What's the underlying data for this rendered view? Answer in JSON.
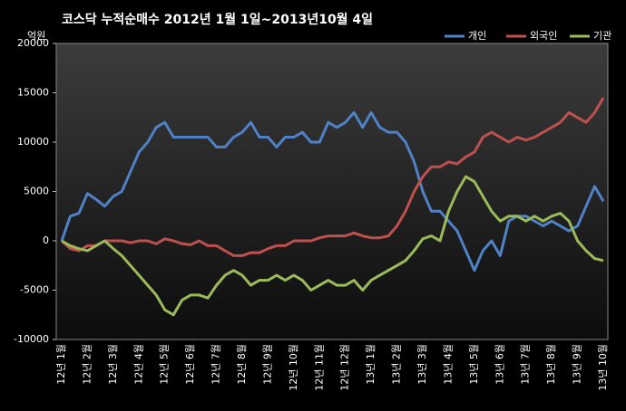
{
  "chart_data": {
    "type": "line",
    "title": "코스닥 누적순매수 2012년 1월 1일~2013년10월 4일",
    "y_label": "억원",
    "categories": [
      "12년 1월",
      null,
      null,
      "12년 2월",
      null,
      null,
      "12년 3월",
      null,
      null,
      "12년 4월",
      null,
      null,
      "12년 5월",
      null,
      null,
      "12년 6월",
      null,
      null,
      "12년 7월",
      null,
      null,
      "12년 8월",
      null,
      null,
      "12년 9월",
      null,
      null,
      "12년 10월",
      null,
      null,
      "12년 11월",
      null,
      null,
      "12년 12월",
      null,
      null,
      "13년 1월",
      null,
      null,
      "13년 2월",
      null,
      null,
      "13년 3월",
      null,
      null,
      "13년 4월",
      null,
      null,
      "13년 5월",
      null,
      null,
      "13년 6월",
      null,
      null,
      "13년 7월",
      null,
      null,
      "13년 8월",
      null,
      null,
      "13년 9월",
      null,
      null,
      "13년 10월"
    ],
    "series": [
      {
        "name": "개인",
        "color": "#4f81c7",
        "values": [
          0,
          2500,
          2800,
          4800,
          4200,
          3500,
          4500,
          5000,
          7000,
          9000,
          10000,
          11500,
          12000,
          10500,
          10500,
          10500,
          10500,
          10500,
          9500,
          9500,
          10500,
          11000,
          12000,
          10500,
          10500,
          9500,
          10500,
          10500,
          11000,
          10000,
          10000,
          12000,
          11500,
          12000,
          13000,
          11500,
          13000,
          11500,
          11000,
          11000,
          10000,
          8000,
          5000,
          3000,
          3000,
          2000,
          1000,
          -1000,
          -3000,
          -1000,
          0,
          -1500,
          2000,
          2500,
          2500,
          2000,
          1500,
          2000,
          1500,
          1000,
          1500,
          3500,
          5500,
          4000
        ]
      },
      {
        "name": "외국인",
        "color": "#c0504d",
        "values": [
          0,
          -800,
          -1000,
          -500,
          -500,
          0,
          0,
          0,
          -200,
          0,
          0,
          -300,
          200,
          0,
          -300,
          -400,
          0,
          -500,
          -500,
          -1000,
          -1500,
          -1500,
          -1200,
          -1200,
          -800,
          -500,
          -500,
          0,
          0,
          0,
          300,
          500,
          500,
          500,
          800,
          500,
          300,
          300,
          500,
          1500,
          3000,
          5000,
          6500,
          7500,
          7500,
          8000,
          7800,
          8500,
          9000,
          10500,
          11000,
          10500,
          10000,
          10500,
          10200,
          10500,
          11000,
          11500,
          12000,
          13000,
          12500,
          12000,
          13000,
          14500
        ]
      },
      {
        "name": "기관",
        "color": "#9bbb59",
        "values": [
          0,
          -500,
          -800,
          -1000,
          -500,
          0,
          -800,
          -1500,
          -2500,
          -3500,
          -4500,
          -5500,
          -7000,
          -7500,
          -6000,
          -5500,
          -5500,
          -5800,
          -4500,
          -3500,
          -3000,
          -3500,
          -4500,
          -4000,
          -4000,
          -3500,
          -4000,
          -3500,
          -4000,
          -5000,
          -4500,
          -4000,
          -4500,
          -4500,
          -4000,
          -5000,
          -4000,
          -3500,
          -3000,
          -2500,
          -2000,
          -1000,
          200,
          500,
          0,
          3000,
          5000,
          6500,
          6000,
          4500,
          3000,
          2000,
          2500,
          2500,
          2000,
          2500,
          2000,
          2500,
          2800,
          2000,
          0,
          -1000,
          -1800,
          -2000
        ]
      }
    ],
    "ylim": [
      -10000,
      20000
    ],
    "yticks": [
      -10000,
      -5000,
      0,
      5000,
      10000,
      15000,
      20000
    ],
    "grid": false
  }
}
